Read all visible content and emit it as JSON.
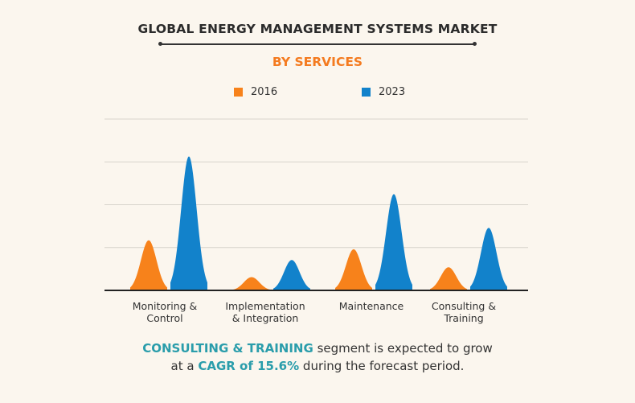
{
  "chart_data": {
    "type": "area",
    "title": "GLOBAL ENERGY MANAGEMENT SYSTEMS MARKET",
    "subtitle": "BY SERVICES",
    "categories": [
      "Monitoring & Control",
      "Implementation & Integration",
      "Maintenance",
      "Consulting & Training"
    ],
    "series": [
      {
        "name": "2016",
        "color": "#f7821b",
        "values": [
          1.17,
          0.31,
          0.96,
          0.54
        ]
      },
      {
        "name": "2023",
        "color": "#1282cb",
        "values": [
          3.13,
          0.71,
          2.25,
          1.46
        ]
      }
    ],
    "ylim": [
      0,
      4
    ],
    "grid": true,
    "legend": "top-center",
    "xlabel": "",
    "ylabel": ""
  },
  "labels": {
    "cat_lines": [
      [
        "Monitoring &",
        "Control"
      ],
      [
        "Implementation",
        "& Integration"
      ],
      [
        "Maintenance",
        ""
      ],
      [
        "Consulting &",
        "Training"
      ]
    ]
  },
  "footer": {
    "hl1": "CONSULTING & TRAINING",
    "t1": " segment is expected to grow",
    "t2": "at a ",
    "hl2": "CAGR of 15.6%",
    "t3": " during the forecast period."
  }
}
